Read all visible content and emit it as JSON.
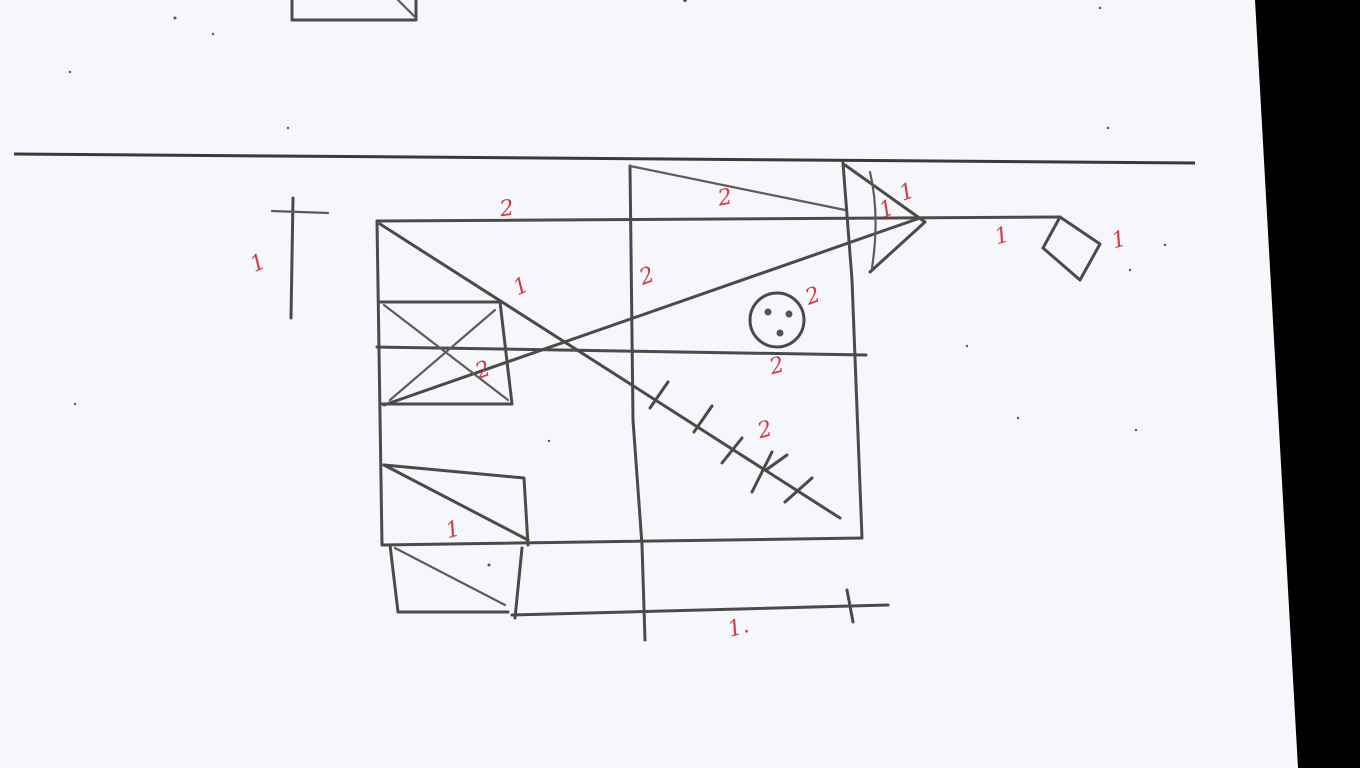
{
  "colors": {
    "paper": "#f6f7fb",
    "pencil": "#4a4a4a",
    "annotation": "#d23a44",
    "background": "#000000"
  },
  "annotations": {
    "top_left_dimension": "1",
    "top_line": "2",
    "top_slope": "2",
    "cone_top": "1",
    "cone_middle": "1",
    "cone_right": "1",
    "tag_right": "1",
    "diagonal_upper": "1",
    "center_line": "2",
    "socket_top": "2",
    "socket_bottom": "2",
    "left_box": "2",
    "hatched_line": "2",
    "lower_left": "1",
    "bottom_dimension": "1."
  }
}
